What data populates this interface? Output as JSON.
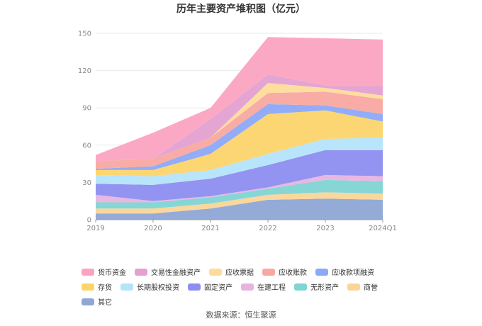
{
  "chart_data": {
    "type": "area",
    "stacked": true,
    "title": "历年主要资产堆积图（亿元）",
    "categories": [
      "2019",
      "2020",
      "2021",
      "2022",
      "2023",
      "2024Q1"
    ],
    "ylim": [
      0,
      150
    ],
    "yticks": [
      0,
      30,
      60,
      90,
      120,
      150
    ],
    "grid": true,
    "legend_position": "bottom",
    "series": [
      {
        "name": "其它",
        "color": "#8ea7d6",
        "values": [
          5,
          5,
          9,
          16,
          17,
          16
        ]
      },
      {
        "name": "商誉",
        "color": "#fbd597",
        "values": [
          4,
          4,
          4,
          4,
          5,
          5
        ]
      },
      {
        "name": "无形资产",
        "color": "#7fd4d4",
        "values": [
          5,
          5,
          5,
          5,
          10,
          10
        ]
      },
      {
        "name": "在建工程",
        "color": "#e7b4e0",
        "values": [
          6,
          1,
          1,
          1,
          4,
          4
        ]
      },
      {
        "name": "固定资产",
        "color": "#8d8ef0",
        "values": [
          9,
          13,
          14,
          18,
          20,
          21
        ]
      },
      {
        "name": "长期股权投资",
        "color": "#b4e4fb",
        "values": [
          7,
          7,
          7,
          9,
          9,
          10
        ]
      },
      {
        "name": "存货",
        "color": "#fcd46a",
        "values": [
          4,
          5,
          13,
          32,
          23,
          13
        ]
      },
      {
        "name": "应收款项融资",
        "color": "#8ca8f8",
        "values": [
          1,
          3,
          7,
          8,
          4,
          6
        ]
      },
      {
        "name": "应收账款",
        "color": "#f8a8a0",
        "values": [
          6,
          6,
          6,
          9,
          11,
          12
        ]
      },
      {
        "name": "应收票据",
        "color": "#fddc9a",
        "values": [
          0,
          0,
          0,
          8,
          3,
          3
        ]
      },
      {
        "name": "交易性金融资产",
        "color": "#e4a0d0",
        "values": [
          0,
          0,
          15,
          7,
          2,
          8
        ]
      },
      {
        "name": "货币资金",
        "color": "#fba3c1",
        "values": [
          5,
          21,
          9,
          30,
          38,
          37
        ]
      }
    ]
  },
  "legend_order": [
    "货币资金",
    "交易性金融资产",
    "应收票据",
    "应收账款",
    "应收款项融资",
    "存货",
    "长期股权投资",
    "固定资产",
    "在建工程",
    "无形资产",
    "商誉",
    "其它"
  ],
  "source": "数据来源：恒生聚源"
}
